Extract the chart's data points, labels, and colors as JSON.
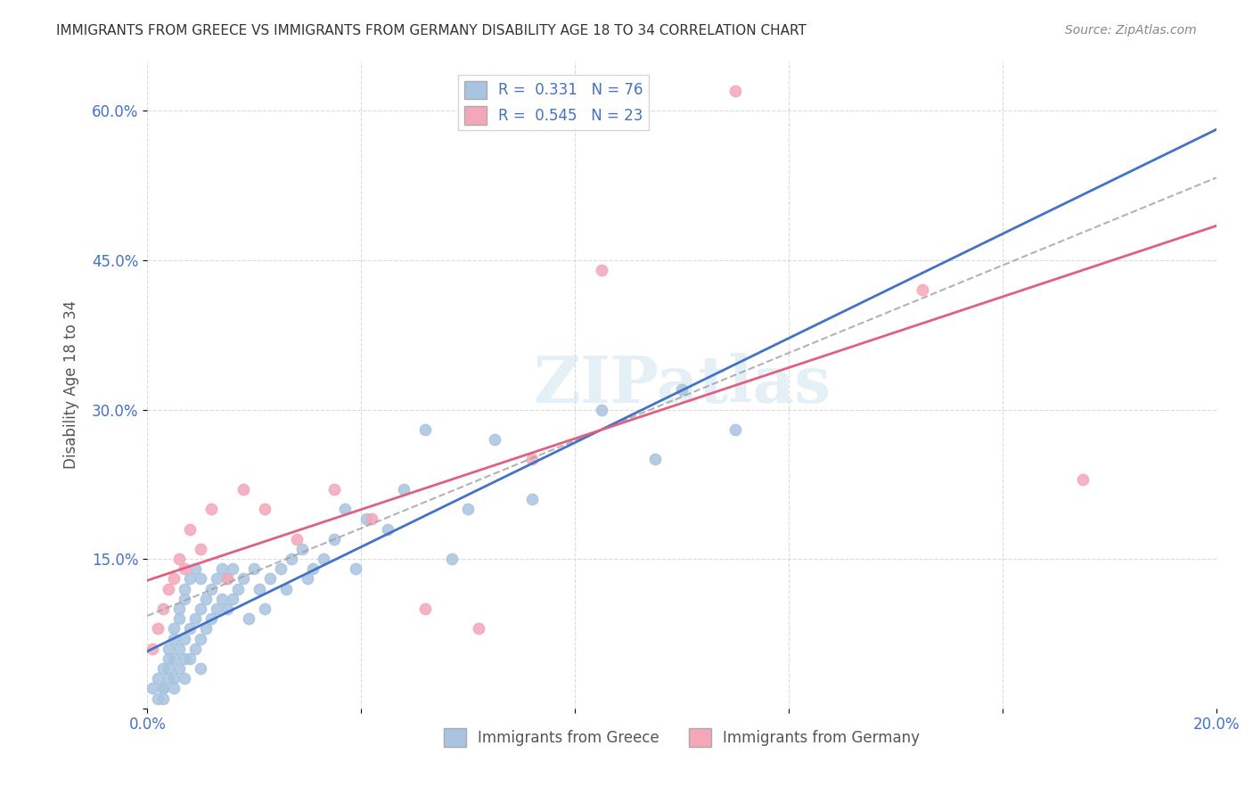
{
  "title": "IMMIGRANTS FROM GREECE VS IMMIGRANTS FROM GERMANY DISABILITY AGE 18 TO 34 CORRELATION CHART",
  "source": "Source: ZipAtlas.com",
  "xlabel": "",
  "ylabel": "Disability Age 18 to 34",
  "xlim": [
    0.0,
    0.2
  ],
  "ylim": [
    0.0,
    0.65
  ],
  "x_ticks": [
    0.0,
    0.04,
    0.08,
    0.12,
    0.16,
    0.2
  ],
  "x_tick_labels": [
    "0.0%",
    "",
    "",
    "",
    "",
    "20.0%"
  ],
  "y_ticks": [
    0.0,
    0.15,
    0.3,
    0.45,
    0.6
  ],
  "y_tick_labels": [
    "",
    "15.0%",
    "30.0%",
    "45.0%",
    "60.0%"
  ],
  "legend_r1": "R =  0.331",
  "legend_n1": "N = 76",
  "legend_r2": "R =  0.545",
  "legend_n2": "N = 23",
  "color_greece": "#a8c4e0",
  "color_germany": "#f4a7b9",
  "line_color_greece": "#4472c4",
  "line_color_germany": "#e06080",
  "watermark": "ZIPatlas",
  "greece_x": [
    0.001,
    0.002,
    0.002,
    0.003,
    0.003,
    0.003,
    0.003,
    0.004,
    0.004,
    0.004,
    0.004,
    0.005,
    0.005,
    0.005,
    0.005,
    0.005,
    0.006,
    0.006,
    0.006,
    0.006,
    0.007,
    0.007,
    0.007,
    0.007,
    0.007,
    0.008,
    0.008,
    0.008,
    0.009,
    0.009,
    0.009,
    0.01,
    0.01,
    0.01,
    0.01,
    0.011,
    0.011,
    0.012,
    0.012,
    0.013,
    0.013,
    0.014,
    0.014,
    0.015,
    0.015,
    0.016,
    0.016,
    0.017,
    0.018,
    0.019,
    0.02,
    0.021,
    0.022,
    0.023,
    0.025,
    0.026,
    0.027,
    0.029,
    0.03,
    0.031,
    0.033,
    0.035,
    0.037,
    0.039,
    0.041,
    0.045,
    0.048,
    0.052,
    0.057,
    0.06,
    0.065,
    0.072,
    0.085,
    0.095,
    0.1,
    0.11
  ],
  "greece_y": [
    0.02,
    0.01,
    0.03,
    0.02,
    0.04,
    0.02,
    0.01,
    0.05,
    0.03,
    0.06,
    0.04,
    0.07,
    0.05,
    0.03,
    0.08,
    0.02,
    0.09,
    0.06,
    0.04,
    0.1,
    0.11,
    0.07,
    0.05,
    0.12,
    0.03,
    0.13,
    0.08,
    0.05,
    0.14,
    0.09,
    0.06,
    0.13,
    0.1,
    0.07,
    0.04,
    0.11,
    0.08,
    0.12,
    0.09,
    0.13,
    0.1,
    0.14,
    0.11,
    0.13,
    0.1,
    0.14,
    0.11,
    0.12,
    0.13,
    0.09,
    0.14,
    0.12,
    0.1,
    0.13,
    0.14,
    0.12,
    0.15,
    0.16,
    0.13,
    0.14,
    0.15,
    0.17,
    0.2,
    0.14,
    0.19,
    0.18,
    0.22,
    0.28,
    0.15,
    0.2,
    0.27,
    0.21,
    0.3,
    0.25,
    0.32,
    0.28
  ],
  "germany_x": [
    0.001,
    0.002,
    0.003,
    0.004,
    0.005,
    0.006,
    0.007,
    0.008,
    0.01,
    0.012,
    0.015,
    0.018,
    0.022,
    0.028,
    0.035,
    0.042,
    0.052,
    0.062,
    0.072,
    0.085,
    0.11,
    0.145,
    0.175
  ],
  "germany_y": [
    0.06,
    0.08,
    0.1,
    0.12,
    0.13,
    0.15,
    0.14,
    0.18,
    0.16,
    0.2,
    0.13,
    0.22,
    0.2,
    0.17,
    0.22,
    0.19,
    0.1,
    0.08,
    0.25,
    0.44,
    0.62,
    0.42,
    0.23
  ]
}
